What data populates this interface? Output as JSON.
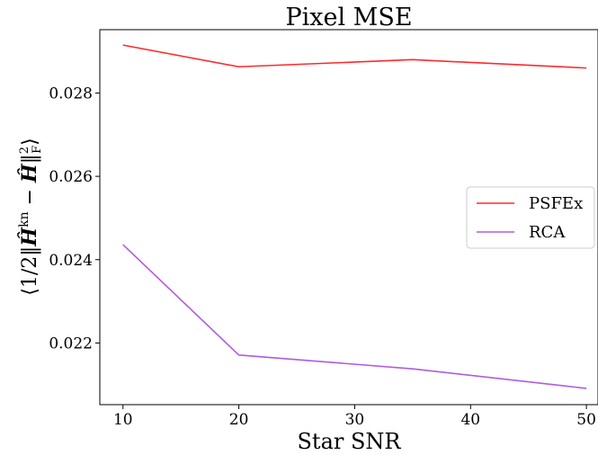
{
  "chart_data": {
    "type": "line",
    "title": "Pixel MSE",
    "xlabel": "Star SNR",
    "ylabel": "⟨1/2‖Ĥ^kn − Ĥ‖²_F⟩",
    "ylabel_parts": {
      "prefix": "⟨1/2‖",
      "h1": "Ĥ",
      "sup_kn": "kn",
      "mid": " − ",
      "h2": "Ĥ",
      "end": "‖",
      "sup_2": "2",
      "sub_F": "F",
      "close": "⟩"
    },
    "x": [
      10,
      20,
      35,
      50
    ],
    "series": [
      {
        "name": "PSFEx",
        "color": "#ff2a2a",
        "values": [
          0.02915,
          0.02863,
          0.0288,
          0.0286
        ]
      },
      {
        "name": "RCA",
        "color": "#b05be0",
        "values": [
          0.02436,
          0.02171,
          0.02138,
          0.02091
        ]
      }
    ],
    "xlim": [
      8.0,
      51.0
    ],
    "ylim": [
      0.02052,
      0.02952
    ],
    "xticks": [
      10,
      20,
      30,
      40,
      50
    ],
    "xtick_labels": [
      "10",
      "20",
      "30",
      "40",
      "50"
    ],
    "yticks": [
      0.022,
      0.024,
      0.026,
      0.028
    ],
    "ytick_labels": [
      "0.022",
      "0.024",
      "0.026",
      "0.028"
    ],
    "grid": false,
    "legend_position": "center-right"
  }
}
